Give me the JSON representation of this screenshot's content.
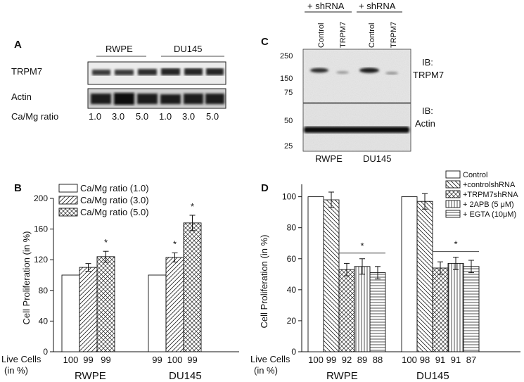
{
  "panel_letters": {
    "a": "A",
    "b": "B",
    "c": "C",
    "d": "D"
  },
  "panel_a": {
    "group_labels": [
      "RWPE",
      "DU145"
    ],
    "row_labels": {
      "trpm7": "TRPM7",
      "actin": "Actin",
      "ratio": "Ca/Mg ratio"
    },
    "ratio_values": [
      "1.0",
      "3.0",
      "5.0",
      "1.0",
      "3.0",
      "5.0"
    ]
  },
  "panel_c": {
    "header": [
      "+ shRNA",
      "+ shRNA"
    ],
    "lanes": [
      "Control",
      "TRPM7",
      "Control",
      "TRPM7"
    ],
    "mw_top": [
      "250",
      "150",
      "75"
    ],
    "mw_bottom": [
      "50",
      "25"
    ],
    "ib_top": [
      "IB:",
      "TRPM7"
    ],
    "ib_bottom": [
      "IB:",
      "Actin"
    ],
    "groups": [
      "RWPE",
      "DU145"
    ]
  },
  "chart_data": [
    {
      "panel": "B",
      "type": "bar",
      "ylabel": "Cell Proliferation (in %)",
      "ylim": [
        0,
        200
      ],
      "yticks": [
        "0",
        "40",
        "80",
        "120",
        "160",
        "200"
      ],
      "categories": [
        "RWPE",
        "DU145"
      ],
      "series": [
        {
          "name": "Ca/Mg ratio (1.0)",
          "values": [
            100,
            100
          ],
          "errors": [
            0,
            0
          ],
          "live": [
            "100",
            "99"
          ],
          "pattern": "none"
        },
        {
          "name": "Ca/Mg ratio (3.0)",
          "values": [
            110,
            123
          ],
          "errors": [
            5,
            6
          ],
          "live": [
            "99",
            "100"
          ],
          "pattern": "hatch-fwd"
        },
        {
          "name": "Ca/Mg ratio (5.0)",
          "values": [
            124,
            168
          ],
          "errors": [
            7,
            10
          ],
          "live": [
            "99",
            "99"
          ],
          "pattern": "cross"
        }
      ],
      "significance": [
        {
          "group": 0,
          "series": 2,
          "mark": "*"
        },
        {
          "group": 1,
          "series": 1,
          "mark": "*"
        },
        {
          "group": 1,
          "series": 2,
          "mark": "*"
        }
      ],
      "live_label": [
        "Live Cells",
        "(in %)"
      ],
      "legend_position": "top"
    },
    {
      "panel": "D",
      "type": "bar",
      "ylabel": "Cell Proliferation (in %)",
      "ylim": [
        0,
        108
      ],
      "yticks": [
        "0",
        "20",
        "40",
        "60",
        "80",
        "100"
      ],
      "categories": [
        "RWPE",
        "DU145"
      ],
      "series": [
        {
          "name": "Control",
          "values": [
            100,
            100
          ],
          "errors": [
            0,
            0
          ],
          "live": [
            "100",
            "100"
          ],
          "pattern": "none"
        },
        {
          "name": "+controlshRNA",
          "values": [
            98,
            97
          ],
          "errors": [
            5,
            5
          ],
          "live": [
            "99",
            "98"
          ],
          "pattern": "hatch-back"
        },
        {
          "name": "+TRPM7shRNA",
          "values": [
            53,
            54
          ],
          "errors": [
            4,
            4
          ],
          "live": [
            "92",
            "91"
          ],
          "pattern": "cross"
        },
        {
          "name": "+ 2APB (5 μM)",
          "values": [
            55,
            57
          ],
          "errors": [
            5,
            4
          ],
          "live": [
            "89",
            "91"
          ],
          "pattern": "vertical"
        },
        {
          "name": "+ EGTA (10μM)",
          "values": [
            51,
            55
          ],
          "errors": [
            4,
            4
          ],
          "live": [
            "88",
            "87"
          ],
          "pattern": "horizontal"
        }
      ],
      "significance_lines": [
        {
          "group": 0,
          "mark": "*"
        },
        {
          "group": 1,
          "mark": "*"
        }
      ],
      "live_label": [
        "Live Cells",
        "(in %)"
      ],
      "legend_position": "top-right"
    }
  ]
}
